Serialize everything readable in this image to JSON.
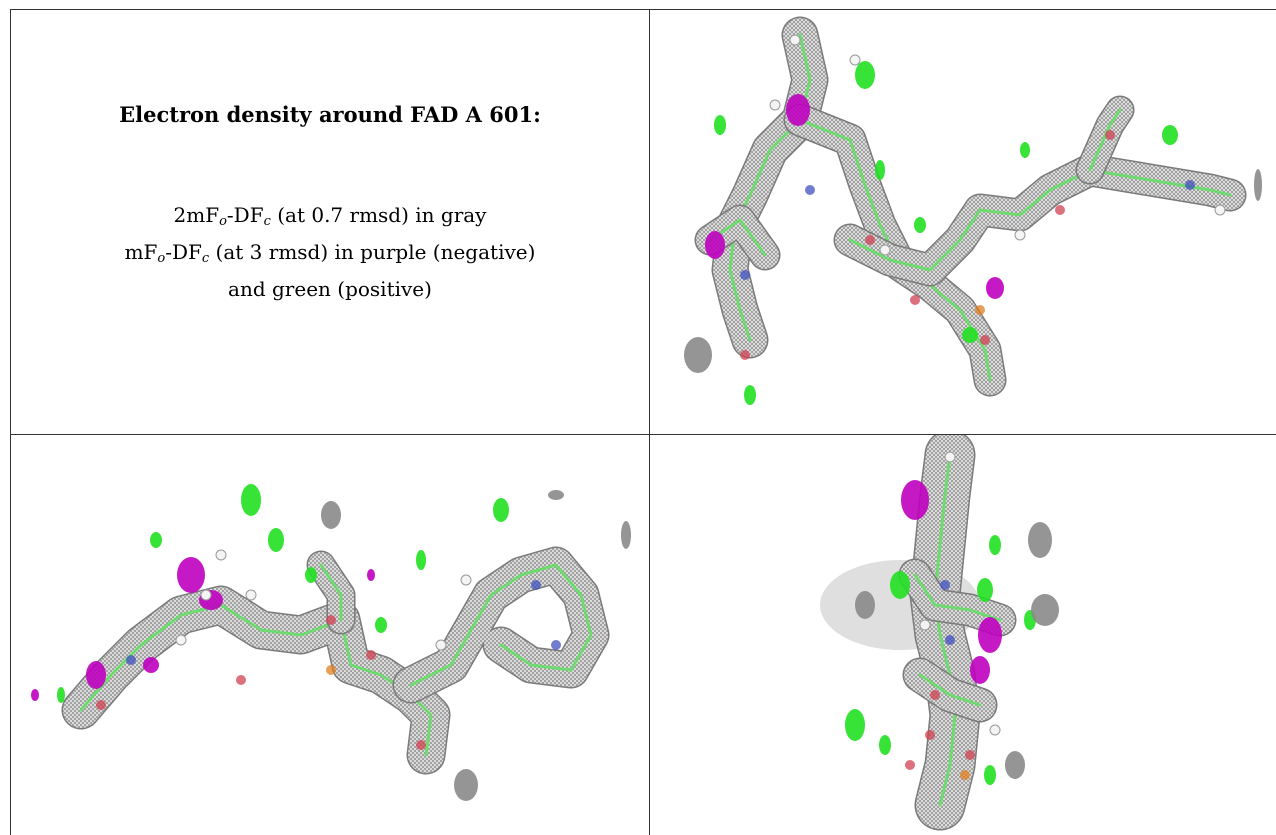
{
  "caption": {
    "title": "Electron density around FAD A 601:",
    "line1": {
      "pre": "2mF",
      "sub1": "o",
      "mid": "-DF",
      "sub2": "c",
      "post": " (at 0.7 rmsd) in gray"
    },
    "line2": {
      "pre": "mF",
      "sub1": "o",
      "mid": "-DF",
      "sub2": "c",
      "post": " (at 3 rmsd) in purple (negative)"
    },
    "line3": "and green (positive)"
  },
  "colors": {
    "density_gray": "#8a8a8a",
    "negative_purple": "#c000c0",
    "positive_green": "#22e022",
    "atom_red": "#d04050",
    "atom_blue": "#4050c0",
    "atom_orange": "#e08020",
    "bond_green": "#66dd66"
  },
  "panels": [
    {
      "name": "view-top-right"
    },
    {
      "name": "view-bottom-left"
    },
    {
      "name": "view-bottom-right"
    }
  ]
}
